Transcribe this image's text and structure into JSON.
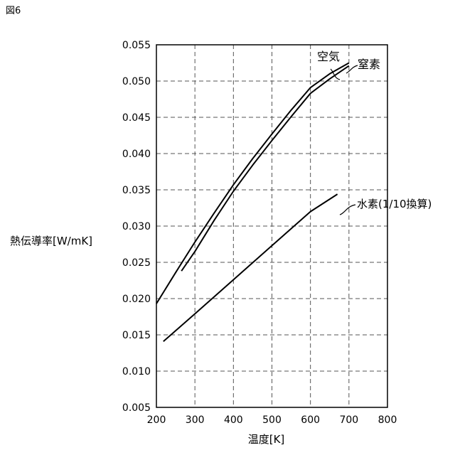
{
  "figure_label": "図6",
  "chart_data": {
    "type": "line",
    "title": "",
    "xlabel": "温度[K]",
    "ylabel": "熱伝導率[W/mK]",
    "xlim": [
      200,
      800
    ],
    "ylim": [
      0.005,
      0.055
    ],
    "x_ticks": [
      "200",
      "300",
      "400",
      "500",
      "600",
      "700",
      "800"
    ],
    "y_ticks": [
      "0.005",
      "0.010",
      "0.015",
      "0.020",
      "0.025",
      "0.030",
      "0.035",
      "0.040",
      "0.045",
      "0.050",
      "0.055"
    ],
    "grid": true,
    "series": [
      {
        "name": "空気",
        "x": [
          200,
          250,
          300,
          350,
          400,
          450,
          500,
          550,
          600,
          650,
          700
        ],
        "y": [
          0.0193,
          0.0236,
          0.0278,
          0.0318,
          0.0357,
          0.0393,
          0.0427,
          0.046,
          0.0491,
          0.051,
          0.0525
        ]
      },
      {
        "name": "窒素",
        "x": [
          265,
          300,
          350,
          400,
          450,
          500,
          550,
          600,
          650,
          700
        ],
        "y": [
          0.0238,
          0.0265,
          0.0308,
          0.0348,
          0.0384,
          0.0418,
          0.0451,
          0.0483,
          0.0503,
          0.0521
        ]
      },
      {
        "name": "水素(1/10換算)",
        "x": [
          218,
          300,
          400,
          500,
          600,
          670
        ],
        "y": [
          0.0141,
          0.0179,
          0.0226,
          0.0273,
          0.032,
          0.0344
        ]
      }
    ]
  }
}
